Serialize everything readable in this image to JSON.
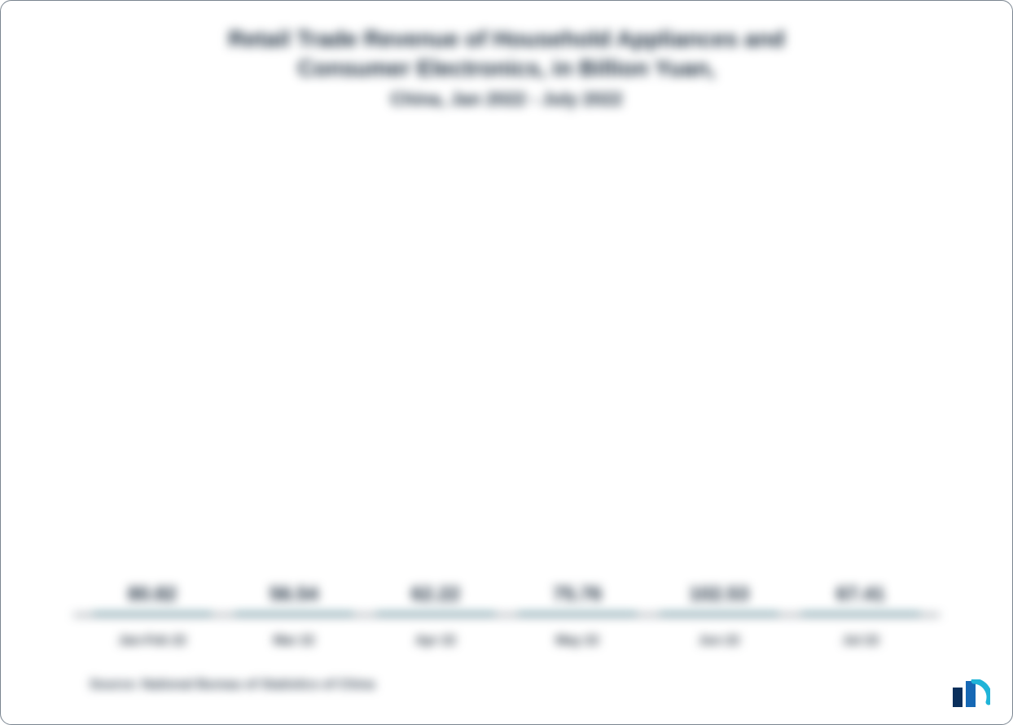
{
  "chart": {
    "type": "bar",
    "title_line1": "Retail Trade Revenue of Household Appliances and",
    "title_line2": "Consumer Electronics, in Billion Yuan,",
    "subtitle": "China, Jan 2022 - July 2022",
    "title_fontsize": 28,
    "subtitle_fontsize": 22,
    "title_color": "#1a2b3c",
    "categories": [
      "Jan-Feb 22",
      "Mar 22",
      "Apr 22",
      "May 22",
      "Jun 22",
      "Jul 22"
    ],
    "values": [
      80.82,
      56.54,
      62.22,
      75.76,
      102.53,
      67.41
    ],
    "value_labels": [
      "80.82",
      "56.54",
      "62.22",
      "75.76",
      "102.53",
      "67.41"
    ],
    "bar_color": "#4bb0c0",
    "bar_border_color": "#3a95a5",
    "axis_color": "#2b3a4a",
    "value_label_fontsize": 24,
    "x_label_fontsize": 16,
    "ylim": [
      0,
      110
    ],
    "bar_width_pct": 14,
    "background_color": "#ffffff",
    "source_text": "Source: National Bureau of Statistics of China",
    "source_fontsize": 16,
    "logo_colors": {
      "bar1": "#0a2f5c",
      "bar2": "#1668b5",
      "arc": "#1fb4d8"
    }
  }
}
